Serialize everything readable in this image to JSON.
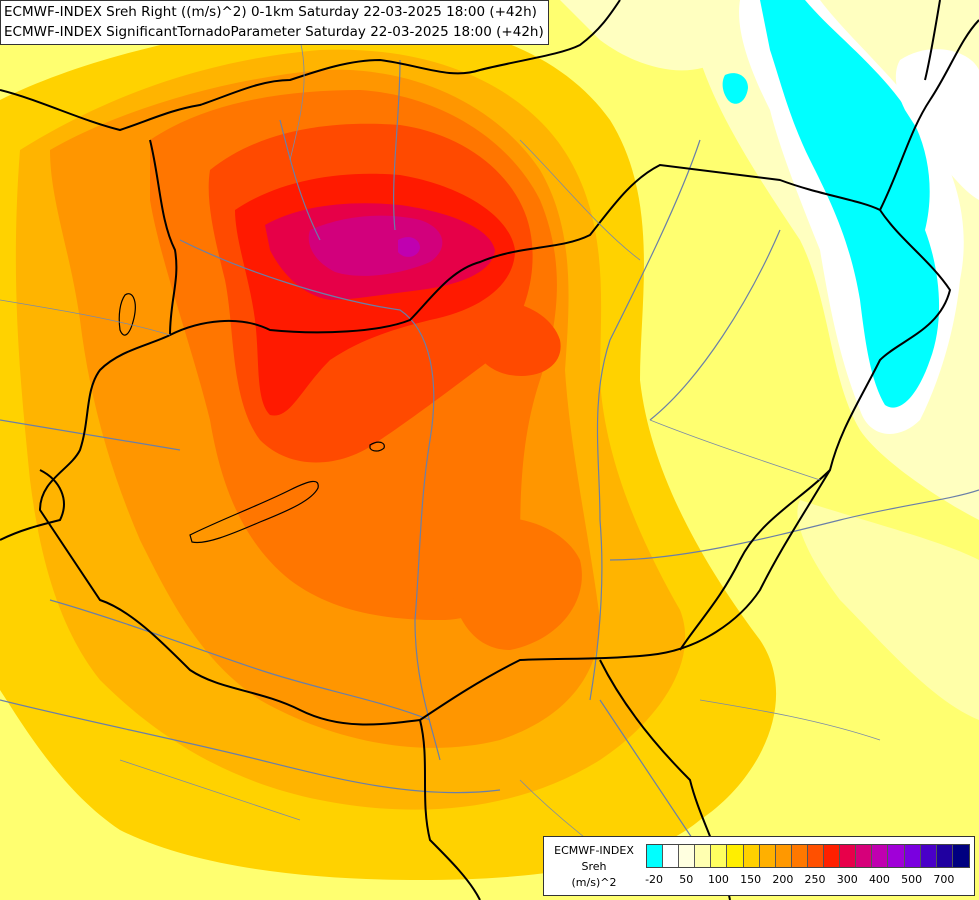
{
  "title": {
    "line1": "ECMWF-INDEX Sreh Right ((m/s)^2) 0-1km Saturday 22-03-2025 18:00 (+42h)",
    "line2": "ECMWF-INDEX SignificantTornadoParameter Saturday 22-03-2025 18:00 (+42h)"
  },
  "legend": {
    "model": "ECMWF-INDEX",
    "variable": "Sreh",
    "unit": "(m/s)^2",
    "colors": [
      "#00ffff",
      "#ffffff",
      "#ffffe0",
      "#ffffb0",
      "#ffff60",
      "#ffee00",
      "#ffd000",
      "#ffb000",
      "#ff9800",
      "#ff7800",
      "#ff5000",
      "#ff2000",
      "#e8004a",
      "#d6007a",
      "#c000b0",
      "#a000d8",
      "#7a00e0",
      "#4a00c8",
      "#2000a0",
      "#000080"
    ],
    "ticks": [
      {
        "label": "-20",
        "index": 0.5
      },
      {
        "label": "50",
        "index": 2.5
      },
      {
        "label": "100",
        "index": 4.5
      },
      {
        "label": "150",
        "index": 6.5
      },
      {
        "label": "200",
        "index": 8.5
      },
      {
        "label": "250",
        "index": 10.5
      },
      {
        "label": "300",
        "index": 12.5
      },
      {
        "label": "400",
        "index": 14.5
      },
      {
        "label": "500",
        "index": 16.5
      },
      {
        "label": "700",
        "index": 18.5
      }
    ]
  },
  "map_colors": {
    "lightest": "#ffffc8",
    "light_yellow": "#ffff78",
    "yellow": "#ffee00",
    "gold": "#ffd000",
    "orange_yellow": "#ffb400",
    "orange": "#ff9600",
    "deep_orange": "#ff7000",
    "red_orange": "#ff4a00",
    "red": "#ff1a00",
    "crimson": "#e8004a",
    "magenta": "#d6007a",
    "negative": "#00ffff",
    "near_zero": "#ffffff",
    "border": "#000000",
    "river": "#6a7fa8"
  }
}
